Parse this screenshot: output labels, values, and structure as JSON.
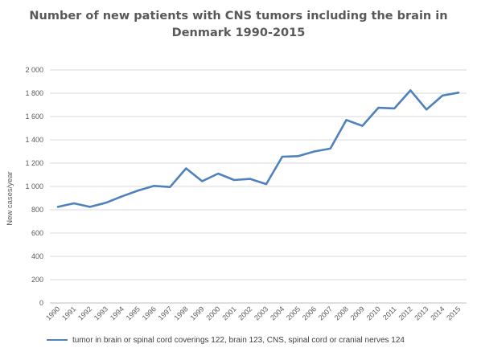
{
  "chart_data": {
    "type": "line",
    "title_lines": [
      "Number of new patients with CNS tumors including the brain in",
      "Denmark 1990-2015"
    ],
    "ylabel": "New cases/year",
    "xlabel": "",
    "ylim": [
      0,
      2000
    ],
    "y_ticks": [
      0,
      200,
      400,
      600,
      800,
      1000,
      1200,
      1400,
      1600,
      1800,
      2000
    ],
    "y_tick_labels": [
      "0",
      "200",
      "400",
      "600",
      "800",
      "1 000",
      "1 200",
      "1 400",
      "1 600",
      "1 800",
      "2 000"
    ],
    "x": [
      "1990",
      "1991",
      "1992",
      "1993",
      "1994",
      "1995",
      "1996",
      "1997",
      "1998",
      "1999",
      "2000",
      "2001",
      "2002",
      "2003",
      "2004",
      "2005",
      "2006",
      "2007",
      "2008",
      "2009",
      "2010",
      "2011",
      "2012",
      "2013",
      "2014",
      "2015"
    ],
    "series": [
      {
        "name": "tumor in brain or spinal cord coverings 122, brain 123, CNS, spinal cord or cranial nerves 124",
        "color": "#4f81bd",
        "values": [
          825,
          855,
          825,
          860,
          915,
          965,
          1005,
          995,
          1155,
          1045,
          1110,
          1055,
          1065,
          1020,
          1255,
          1260,
          1300,
          1325,
          1570,
          1520,
          1675,
          1670,
          1825,
          1660,
          1780,
          1805
        ]
      }
    ],
    "grid": true,
    "legend_position": "bottom"
  }
}
